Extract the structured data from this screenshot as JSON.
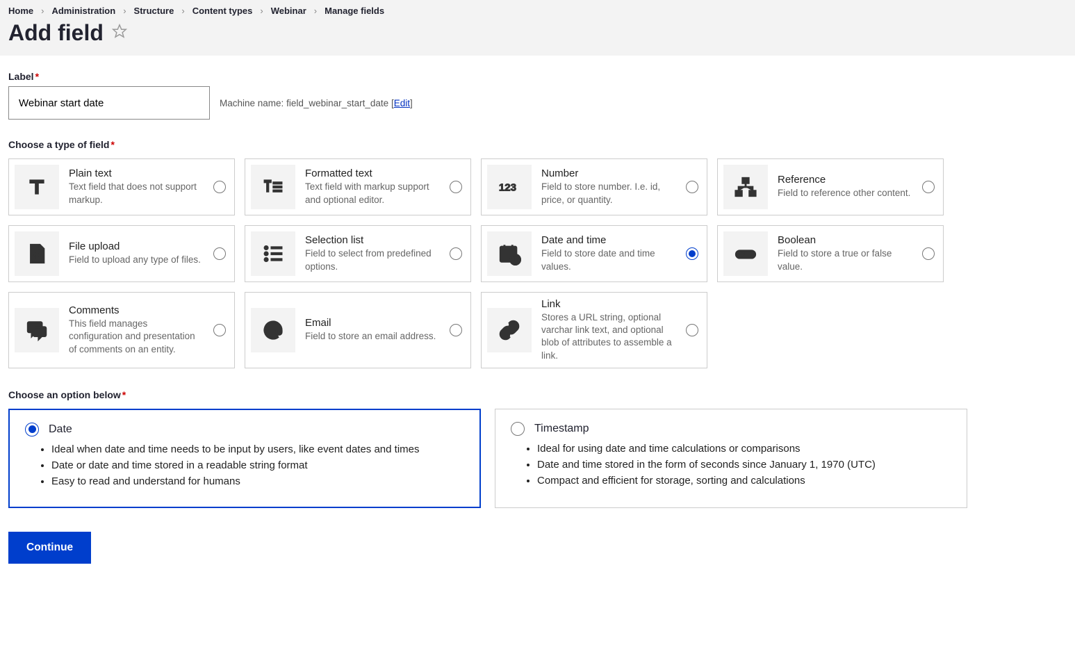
{
  "breadcrumbs": [
    "Home",
    "Administration",
    "Structure",
    "Content types",
    "Webinar",
    "Manage fields"
  ],
  "page_title": "Add field",
  "label_section": {
    "label": "Label",
    "value": "Webinar start date",
    "machine_name_prefix": "Machine name:",
    "machine_name_value": "field_webinar_start_date",
    "edit_text": "Edit"
  },
  "choose_type_label": "Choose a type of field",
  "field_types": [
    {
      "id": "plain-text",
      "title": "Plain text",
      "desc": "Text field that does not support markup.",
      "icon": "text-t",
      "selected": false
    },
    {
      "id": "formatted-text",
      "title": "Formatted text",
      "desc": "Text field with markup support and optional editor.",
      "icon": "formatted-text",
      "selected": false
    },
    {
      "id": "number",
      "title": "Number",
      "desc": "Field to store number. I.e. id, price, or quantity.",
      "icon": "number-123",
      "selected": false
    },
    {
      "id": "reference",
      "title": "Reference",
      "desc": "Field to reference other content.",
      "icon": "reference",
      "selected": false
    },
    {
      "id": "file-upload",
      "title": "File upload",
      "desc": "Field to upload any type of files.",
      "icon": "file-upload",
      "selected": false
    },
    {
      "id": "selection-list",
      "title": "Selection list",
      "desc": "Field to select from predefined options.",
      "icon": "selection-list",
      "selected": false
    },
    {
      "id": "date-time",
      "title": "Date and time",
      "desc": "Field to store date and time values.",
      "icon": "calendar",
      "selected": true
    },
    {
      "id": "boolean",
      "title": "Boolean",
      "desc": "Field to store a true or false value.",
      "icon": "toggle",
      "selected": false
    },
    {
      "id": "comments",
      "title": "Comments",
      "desc": "This field manages configuration and presentation of comments on an entity.",
      "icon": "comments",
      "selected": false
    },
    {
      "id": "email",
      "title": "Email",
      "desc": "Field to store an email address.",
      "icon": "email-at",
      "selected": false
    },
    {
      "id": "link",
      "title": "Link",
      "desc": "Stores a URL string, optional varchar link text, and optional blob of attributes to assemble a link.",
      "icon": "link",
      "selected": false
    }
  ],
  "choose_option_label": "Choose an option below",
  "options": [
    {
      "id": "date",
      "title": "Date",
      "selected": true,
      "bullets": [
        "Ideal when date and time needs to be input by users, like event dates and times",
        "Date or date and time stored in a readable string format",
        "Easy to read and understand for humans"
      ]
    },
    {
      "id": "timestamp",
      "title": "Timestamp",
      "selected": false,
      "bullets": [
        "Ideal for using date and time calculations or comparisons",
        "Date and time stored in the form of seconds since January 1, 1970 (UTC)",
        "Compact and efficient for storage, sorting and calculations"
      ]
    }
  ],
  "continue_label": "Continue",
  "colors": {
    "header_bg": "#f3f3f3",
    "accent": "#003ecc",
    "required": "#cc0000",
    "border": "#cccccc",
    "icon_bg": "#f3f3f3",
    "text_secondary": "#666666"
  }
}
